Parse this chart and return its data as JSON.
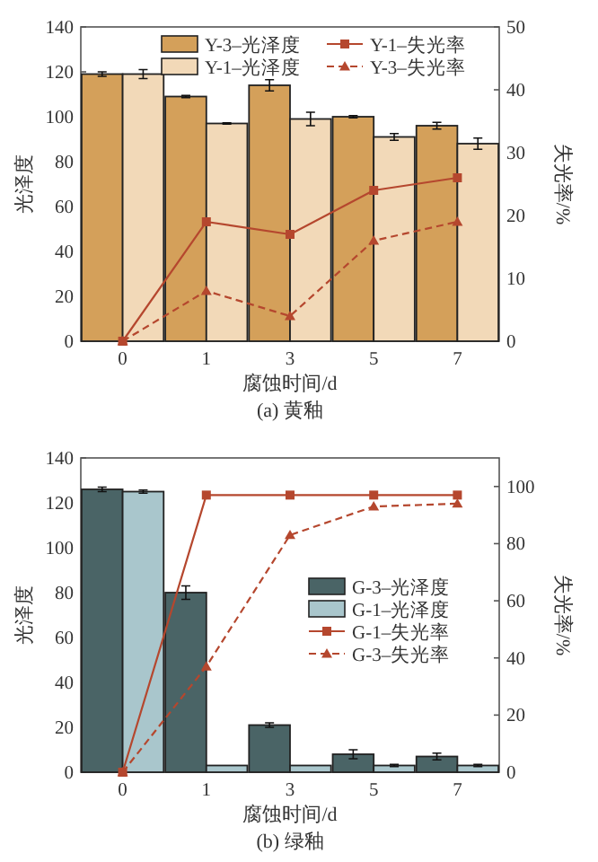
{
  "chart_data": [
    {
      "type": "bar",
      "title": "(a) 黄釉",
      "xlabel": "腐蚀时间/d",
      "ylabel": "光泽度",
      "y2label": "失光率/%",
      "categories": [
        "0",
        "1",
        "3",
        "5",
        "7"
      ],
      "ylim": [
        0,
        140
      ],
      "yticks": [
        0,
        20,
        40,
        60,
        80,
        100,
        120,
        140
      ],
      "y2lim": [
        0,
        50
      ],
      "y2ticks": [
        0,
        10,
        20,
        30,
        40,
        50
      ],
      "legend": "top right",
      "series": [
        {
          "name": "Y-3–光泽度",
          "color": "#d4a05a",
          "values": [
            119,
            109,
            114,
            100,
            96
          ],
          "errors": [
            1,
            0.5,
            2.5,
            0.5,
            1.5
          ]
        },
        {
          "name": "Y-1–光泽度",
          "color": "#f2d9b8",
          "values": [
            119,
            97,
            99,
            91,
            88
          ],
          "errors": [
            2,
            0.3,
            3,
            1.5,
            2.5
          ]
        },
        {
          "name": "Y-1–失光率",
          "type": "line",
          "axis": "y2",
          "color": "#b5472e",
          "marker": "square",
          "line_style": "solid",
          "values": [
            0,
            19,
            17,
            24,
            26
          ]
        },
        {
          "name": "Y-3–失光率",
          "type": "line",
          "axis": "y2",
          "color": "#b5472e",
          "marker": "triangle",
          "line_style": "dashed",
          "values": [
            0,
            8,
            4,
            16,
            19
          ]
        }
      ]
    },
    {
      "type": "bar",
      "title": "(b) 绿釉",
      "xlabel": "腐蚀时间/d",
      "ylabel": "光泽度",
      "y2label": "失光率/%",
      "categories": [
        "0",
        "1",
        "3",
        "5",
        "7"
      ],
      "ylim": [
        0,
        140
      ],
      "yticks": [
        0,
        20,
        40,
        60,
        80,
        100,
        120,
        140
      ],
      "y2lim": [
        0,
        110
      ],
      "y2ticks": [
        0,
        20,
        40,
        60,
        80,
        100
      ],
      "legend": "center right",
      "series": [
        {
          "name": "G-3–光泽度",
          "color": "#4a6466",
          "values": [
            126,
            80,
            21,
            8,
            7
          ],
          "errors": [
            1,
            3,
            1,
            2,
            1.5
          ]
        },
        {
          "name": "G-1–光泽度",
          "color": "#a9c6cc",
          "values": [
            125,
            3,
            3,
            3,
            3
          ],
          "errors": [
            0.7,
            null,
            null,
            0.5,
            0.5
          ]
        },
        {
          "name": "G-1–失光率",
          "type": "line",
          "axis": "y2",
          "color": "#b5472e",
          "marker": "square",
          "line_style": "solid",
          "values": [
            0,
            97,
            97,
            97,
            97
          ]
        },
        {
          "name": "G-3–失光率",
          "type": "line",
          "axis": "y2",
          "color": "#b5472e",
          "marker": "triangle",
          "line_style": "dashed",
          "values": [
            0,
            37,
            83,
            93,
            94
          ]
        }
      ]
    }
  ]
}
